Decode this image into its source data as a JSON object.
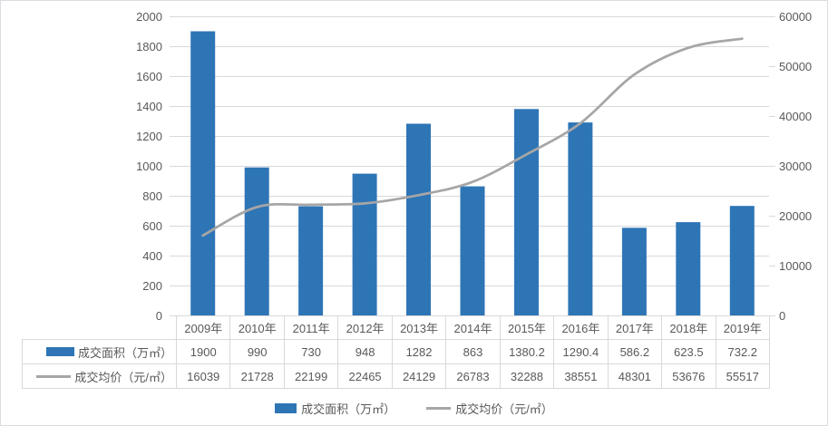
{
  "chart_data": {
    "type": "bar+line combo",
    "categories": [
      "2009年",
      "2010年",
      "2011年",
      "2012年",
      "2013年",
      "2014年",
      "2015年",
      "2016年",
      "2017年",
      "2018年",
      "2019年"
    ],
    "series": [
      {
        "name": "成交面积（万㎡）",
        "chart": "bar",
        "axis": "left",
        "smooth": false,
        "values": [
          1900,
          990,
          730,
          948,
          1282,
          863,
          1380.2,
          1290.4,
          586.2,
          623.5,
          732.2
        ]
      },
      {
        "name": "成交均价（元/㎡）",
        "chart": "line",
        "axis": "right",
        "smooth": true,
        "values": [
          16039,
          21728,
          22199,
          22465,
          24129,
          26783,
          32288,
          38551,
          48301,
          53676,
          55517
        ]
      }
    ],
    "left_axis": {
      "min": 0,
      "max": 2000,
      "step": 200,
      "tick_labels": [
        "0",
        "200",
        "400",
        "600",
        "800",
        "1000",
        "1200",
        "1400",
        "1600",
        "1800",
        "2000"
      ]
    },
    "right_axis": {
      "min": 0,
      "max": 60000,
      "step": 10000,
      "tick_labels": [
        "0",
        "10000",
        "20000",
        "30000",
        "40000",
        "50000",
        "60000"
      ]
    },
    "gridlines": "horizontal at every left-axis step",
    "legend_position": "bottom",
    "data_table_shown": true,
    "title": ""
  },
  "colors": {
    "bar": "#2e75b6",
    "line": "#a6a6a6",
    "gridline": "#d9d9d9",
    "table_border": "#d9d9d9",
    "text": "#595959",
    "card_border": "#d9dde2",
    "background": "#ffffff"
  }
}
